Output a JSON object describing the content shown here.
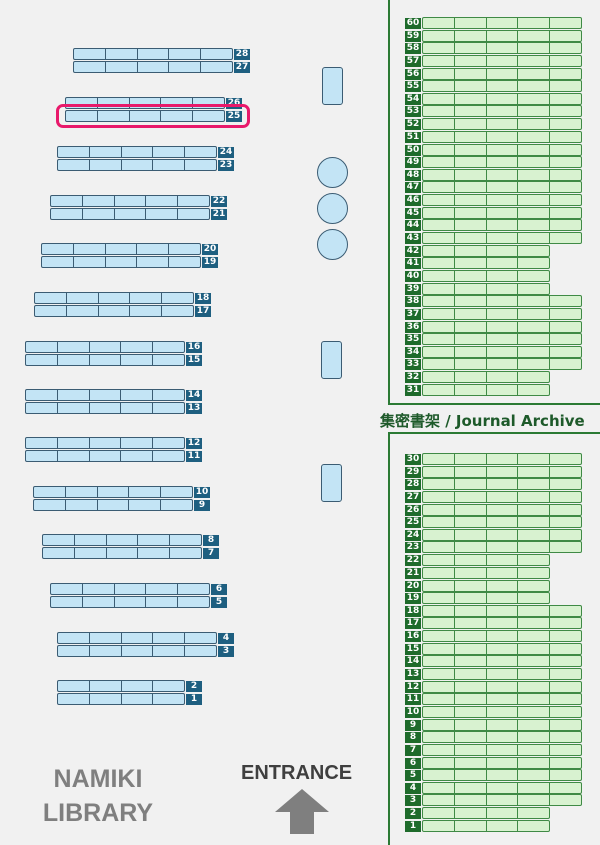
{
  "library_name": {
    "line1": "NAMIKI",
    "line2": "LIBRARY"
  },
  "entrance_label": "ENTRANCE",
  "archive_label": "集密書架 / Journal Archive",
  "selected_shelf": "25",
  "colors": {
    "blue_shelf": "#c3e4f5",
    "green_shelf": "#d8f2d0",
    "highlight": "#e8196b",
    "blue_label": "#1e5f80",
    "green_label": "#1e6b2b"
  },
  "blue_shelves": [
    {
      "number": "28",
      "sections": 5
    },
    {
      "number": "27",
      "sections": 5
    },
    {
      "number": "26",
      "sections": 5
    },
    {
      "number": "25",
      "sections": 5
    },
    {
      "number": "24",
      "sections": 5
    },
    {
      "number": "23",
      "sections": 5
    },
    {
      "number": "22",
      "sections": 5
    },
    {
      "number": "21",
      "sections": 5
    },
    {
      "number": "20",
      "sections": 5
    },
    {
      "number": "19",
      "sections": 5
    },
    {
      "number": "18",
      "sections": 5
    },
    {
      "number": "17",
      "sections": 5
    },
    {
      "number": "16",
      "sections": 5
    },
    {
      "number": "15",
      "sections": 5
    },
    {
      "number": "14",
      "sections": 5
    },
    {
      "number": "13",
      "sections": 5
    },
    {
      "number": "12",
      "sections": 5
    },
    {
      "number": "11",
      "sections": 5
    },
    {
      "number": "10",
      "sections": 5
    },
    {
      "number": "9",
      "sections": 5
    },
    {
      "number": "8",
      "sections": 5
    },
    {
      "number": "7",
      "sections": 5
    },
    {
      "number": "6",
      "sections": 5
    },
    {
      "number": "5",
      "sections": 5
    },
    {
      "number": "4",
      "sections": 5
    },
    {
      "number": "3",
      "sections": 5
    },
    {
      "number": "2",
      "sections": 4
    },
    {
      "number": "1",
      "sections": 4
    }
  ],
  "green_shelves_upper": [
    "60",
    "59",
    "58",
    "57",
    "56",
    "55",
    "54",
    "53",
    "52",
    "51",
    "50",
    "49",
    "48",
    "47",
    "46",
    "45",
    "44",
    "43",
    "42",
    "41",
    "40",
    "39",
    "38",
    "37",
    "36",
    "35",
    "34",
    "33",
    "32",
    "31"
  ],
  "green_shelves_lower": [
    "30",
    "29",
    "28",
    "27",
    "26",
    "25",
    "24",
    "23",
    "22",
    "21",
    "20",
    "19",
    "18",
    "17",
    "16",
    "15",
    "14",
    "13",
    "12",
    "11",
    "10",
    "9",
    "8",
    "7",
    "6",
    "5",
    "4",
    "3",
    "2",
    "1"
  ],
  "green_short_shelves_upper": [
    "42",
    "41",
    "40",
    "39",
    "32",
    "31"
  ],
  "green_short_shelves_lower": [
    "22",
    "21",
    "20",
    "19",
    "2",
    "1"
  ]
}
